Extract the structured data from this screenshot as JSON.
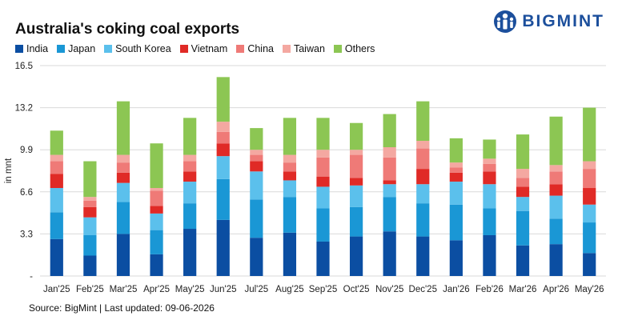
{
  "header": {
    "title": "Australia's coking coal exports",
    "logo_text": "BIGMINT",
    "logo_icon": "bigmint-logo-icon"
  },
  "footer": {
    "source": "Source: BigMint | Last updated: 09-06-2026"
  },
  "colors": {
    "India": "#0b4ea2",
    "Japan": "#1a97d5",
    "South Korea": "#5bc0ec",
    "Vietnam": "#e02a26",
    "China": "#ef7a77",
    "Taiwan": "#f4a8a1",
    "Others": "#8cc653",
    "logo": "#1c4f9c"
  },
  "chart_data": {
    "type": "bar",
    "stacked": true,
    "title": "Australia's coking coal exports",
    "xlabel": "",
    "ylabel": "in mnt",
    "ylim": [
      0,
      16.5
    ],
    "yticks": [
      "-",
      "3.3",
      "6.6",
      "9.9",
      "13.2",
      "16.5"
    ],
    "ytick_values": [
      0,
      3.3,
      6.6,
      9.9,
      13.2,
      16.5
    ],
    "grid": "horizontal",
    "legend_position": "top-left",
    "categories": [
      "Jan'25",
      "Feb'25",
      "Mar'25",
      "Apr'25",
      "May'25",
      "Jun'25",
      "Jul'25",
      "Aug'25",
      "Sep'25",
      "Oct'25",
      "Nov'25",
      "Dec'25",
      "Jan'26",
      "Feb'26",
      "Mar'26",
      "Apr'26",
      "May'26"
    ],
    "series": [
      {
        "name": "India",
        "values": [
          2.9,
          1.6,
          3.3,
          1.7,
          3.7,
          4.4,
          3.0,
          3.4,
          2.7,
          3.1,
          3.5,
          3.1,
          2.8,
          3.2,
          2.4,
          2.5,
          1.8
        ]
      },
      {
        "name": "Japan",
        "values": [
          2.1,
          1.6,
          2.5,
          1.9,
          2.0,
          3.2,
          3.0,
          2.8,
          2.6,
          2.3,
          2.7,
          2.6,
          2.8,
          2.1,
          2.7,
          2.0,
          2.4
        ]
      },
      {
        "name": "South Korea",
        "values": [
          1.9,
          1.4,
          1.5,
          1.3,
          1.7,
          1.8,
          2.2,
          1.3,
          1.7,
          1.7,
          1.0,
          1.5,
          1.8,
          1.9,
          1.1,
          1.8,
          1.4
        ]
      },
      {
        "name": "Vietnam",
        "values": [
          1.1,
          0.8,
          0.8,
          0.6,
          0.8,
          1.0,
          0.8,
          0.7,
          0.8,
          0.6,
          0.3,
          1.2,
          0.7,
          1.0,
          0.8,
          0.9,
          1.3
        ]
      },
      {
        "name": "China",
        "values": [
          1.0,
          0.5,
          0.8,
          1.2,
          0.8,
          0.9,
          0.5,
          0.7,
          1.5,
          1.8,
          1.8,
          1.6,
          0.4,
          0.6,
          0.7,
          1.0,
          1.5
        ]
      },
      {
        "name": "Taiwan",
        "values": [
          0.5,
          0.3,
          0.6,
          0.2,
          0.5,
          0.8,
          0.4,
          0.6,
          0.6,
          0.4,
          0.8,
          0.6,
          0.4,
          0.4,
          0.7,
          0.5,
          0.6
        ]
      },
      {
        "name": "Others",
        "values": [
          1.9,
          2.8,
          4.2,
          3.5,
          2.9,
          3.5,
          1.7,
          2.9,
          2.5,
          2.1,
          2.6,
          3.1,
          1.9,
          1.5,
          2.7,
          3.8,
          4.2
        ]
      }
    ]
  }
}
